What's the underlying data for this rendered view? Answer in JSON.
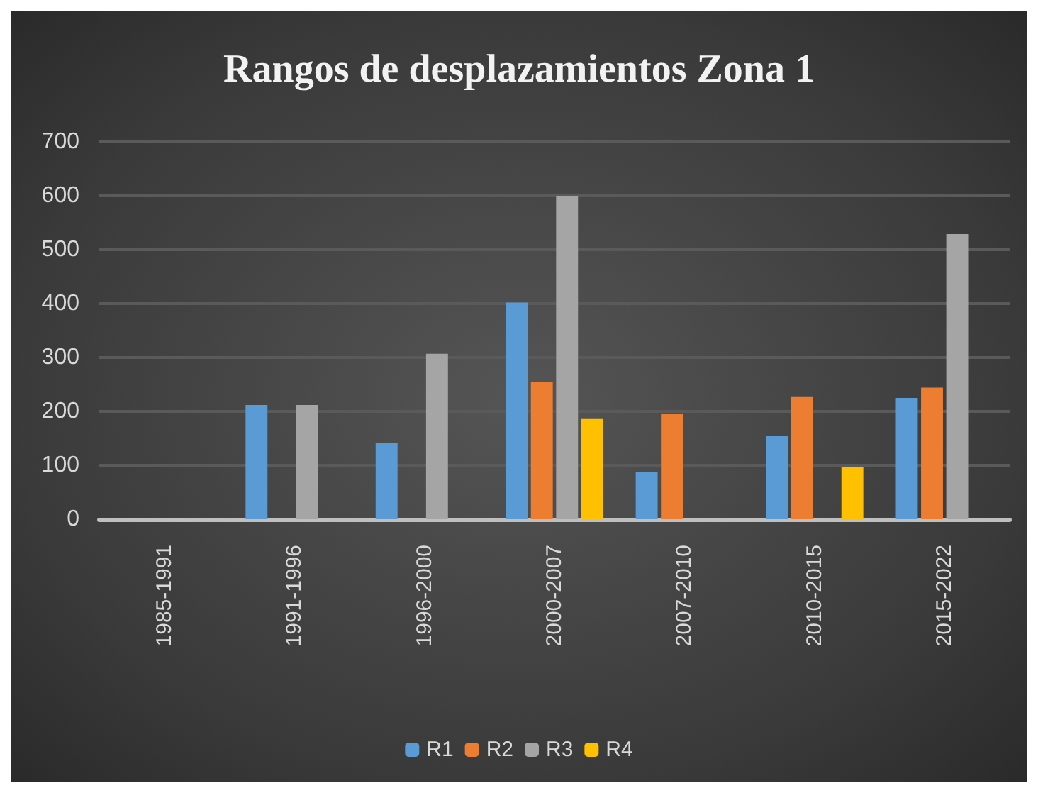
{
  "chart_data": {
    "type": "bar",
    "title": "Rangos de desplazamientos Zona 1",
    "categories": [
      "1985-1991",
      "1991-1996",
      "1996-2000",
      "2000-2007",
      "2007-2010",
      "2010-2015",
      "2015-2022"
    ],
    "series": [
      {
        "name": "R1",
        "color": "#5b9bd5",
        "values": [
          null,
          212,
          141,
          402,
          88,
          154,
          225
        ]
      },
      {
        "name": "R2",
        "color": "#ed7d31",
        "values": [
          null,
          null,
          null,
          254,
          196,
          228,
          244
        ]
      },
      {
        "name": "R3",
        "color": "#a5a5a5",
        "values": [
          null,
          212,
          307,
          600,
          null,
          null,
          529
        ]
      },
      {
        "name": "R4",
        "color": "#ffc000",
        "values": [
          null,
          null,
          null,
          186,
          null,
          96,
          null
        ]
      }
    ],
    "ylim": [
      0,
      700
    ],
    "yticks": [
      0,
      100,
      200,
      300,
      400,
      500,
      600,
      700
    ],
    "grid": "y",
    "legend": "bottom"
  }
}
